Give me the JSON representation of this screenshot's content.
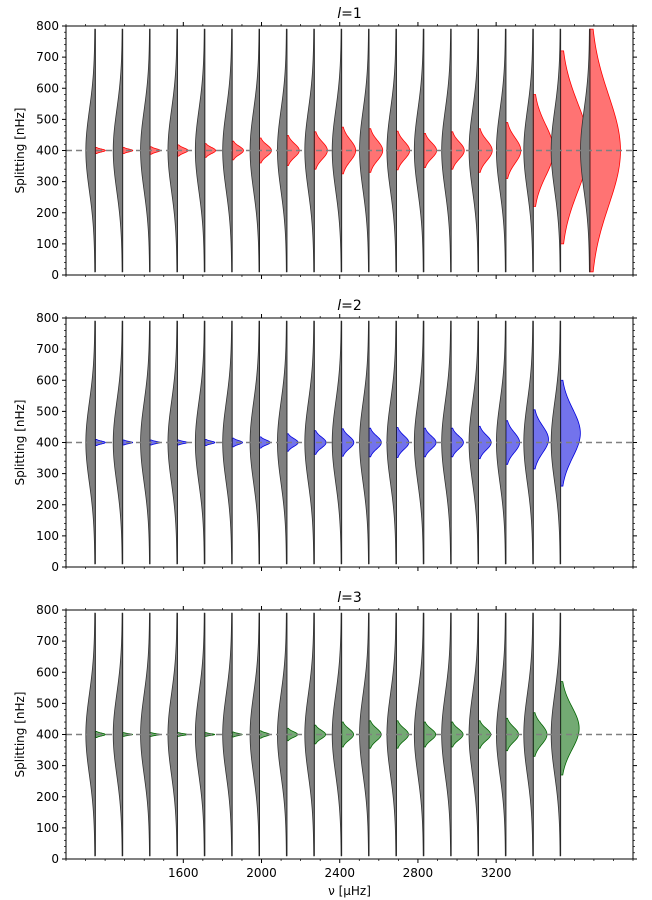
{
  "chart_data": [
    {
      "type": "violin",
      "title": "l=1",
      "title_letter": "l",
      "title_rest": "=1",
      "ylabel": "Splitting [nHz]",
      "xlabel": "",
      "ylim": [
        0,
        800
      ],
      "y_ticks": [
        0,
        100,
        200,
        300,
        400,
        500,
        600,
        700,
        800
      ],
      "x_ticks": [
        1600,
        2000,
        2400,
        2800,
        3200
      ],
      "x_tick_labels_shown": false,
      "xlim": [
        1000,
        3900
      ],
      "reference_line": 400,
      "color": "#ff0000",
      "x": [
        1150,
        1290,
        1430,
        1570,
        1710,
        1850,
        1990,
        2130,
        2270,
        2410,
        2550,
        2690,
        2830,
        2970,
        3110,
        3250,
        3390,
        3530,
        3680
      ],
      "violins": [
        {
          "center": 400,
          "half_range": 10
        },
        {
          "center": 400,
          "half_range": 10
        },
        {
          "center": 400,
          "half_range": 12
        },
        {
          "center": 400,
          "half_range": 18
        },
        {
          "center": 400,
          "half_range": 22
        },
        {
          "center": 400,
          "half_range": 30
        },
        {
          "center": 400,
          "half_range": 40
        },
        {
          "center": 400,
          "half_range": 48
        },
        {
          "center": 400,
          "half_range": 60
        },
        {
          "center": 400,
          "half_range": 75
        },
        {
          "center": 400,
          "half_range": 70
        },
        {
          "center": 400,
          "half_range": 62
        },
        {
          "center": 400,
          "half_range": 55
        },
        {
          "center": 400,
          "half_range": 60
        },
        {
          "center": 400,
          "half_range": 70
        },
        {
          "center": 400,
          "half_range": 90
        },
        {
          "center": 400,
          "half_range": 180
        },
        {
          "center": 410,
          "half_range": 310
        },
        {
          "center": 400,
          "half_range": 390
        }
      ],
      "prior": {
        "center": 400,
        "lower": 10,
        "upper": 790
      }
    },
    {
      "type": "violin",
      "title": "l=2",
      "title_letter": "l",
      "title_rest": "=2",
      "ylabel": "Splitting [nHz]",
      "xlabel": "",
      "ylim": [
        0,
        800
      ],
      "y_ticks": [
        0,
        100,
        200,
        300,
        400,
        500,
        600,
        700,
        800
      ],
      "x_ticks": [
        1600,
        2000,
        2400,
        2800,
        3200
      ],
      "x_tick_labels_shown": false,
      "xlim": [
        1000,
        3900
      ],
      "reference_line": 400,
      "color": "#0000dd",
      "x": [
        1150,
        1290,
        1430,
        1570,
        1710,
        1850,
        1990,
        2130,
        2270,
        2410,
        2550,
        2690,
        2830,
        2970,
        3110,
        3250,
        3390,
        3530
      ],
      "violins": [
        {
          "center": 400,
          "half_range": 10
        },
        {
          "center": 400,
          "half_range": 8
        },
        {
          "center": 400,
          "half_range": 8
        },
        {
          "center": 400,
          "half_range": 8
        },
        {
          "center": 400,
          "half_range": 10
        },
        {
          "center": 400,
          "half_range": 14
        },
        {
          "center": 400,
          "half_range": 18
        },
        {
          "center": 400,
          "half_range": 28
        },
        {
          "center": 400,
          "half_range": 38
        },
        {
          "center": 400,
          "half_range": 44
        },
        {
          "center": 400,
          "half_range": 46
        },
        {
          "center": 400,
          "half_range": 48
        },
        {
          "center": 400,
          "half_range": 46
        },
        {
          "center": 400,
          "half_range": 46
        },
        {
          "center": 400,
          "half_range": 52
        },
        {
          "center": 400,
          "half_range": 70
        },
        {
          "center": 410,
          "half_range": 95
        },
        {
          "center": 430,
          "half_range": 170
        }
      ],
      "prior": {
        "center": 400,
        "lower": 10,
        "upper": 790
      }
    },
    {
      "type": "violin",
      "title": "l=3",
      "title_letter": "l",
      "title_rest": "=3",
      "ylabel": "Splitting [nHz]",
      "xlabel": "ν [μHz]",
      "ylim": [
        0,
        800
      ],
      "y_ticks": [
        0,
        100,
        200,
        300,
        400,
        500,
        600,
        700,
        800
      ],
      "x_ticks": [
        1600,
        2000,
        2400,
        2800,
        3200
      ],
      "x_tick_labels_shown": true,
      "xlim": [
        1000,
        3900
      ],
      "reference_line": 400,
      "color": "#006400",
      "x": [
        1150,
        1290,
        1430,
        1570,
        1710,
        1850,
        1990,
        2130,
        2270,
        2410,
        2550,
        2690,
        2830,
        2970,
        3110,
        3250,
        3390,
        3530
      ],
      "violins": [
        {
          "center": 400,
          "half_range": 10
        },
        {
          "center": 400,
          "half_range": 6
        },
        {
          "center": 400,
          "half_range": 6
        },
        {
          "center": 400,
          "half_range": 6
        },
        {
          "center": 400,
          "half_range": 6
        },
        {
          "center": 400,
          "half_range": 8
        },
        {
          "center": 400,
          "half_range": 12
        },
        {
          "center": 400,
          "half_range": 20
        },
        {
          "center": 400,
          "half_range": 30
        },
        {
          "center": 400,
          "half_range": 40
        },
        {
          "center": 400,
          "half_range": 44
        },
        {
          "center": 400,
          "half_range": 44
        },
        {
          "center": 400,
          "half_range": 40
        },
        {
          "center": 400,
          "half_range": 40
        },
        {
          "center": 400,
          "half_range": 44
        },
        {
          "center": 400,
          "half_range": 52
        },
        {
          "center": 400,
          "half_range": 70
        },
        {
          "center": 420,
          "half_range": 150
        }
      ],
      "prior": {
        "center": 400,
        "lower": 10,
        "upper": 790
      }
    }
  ]
}
